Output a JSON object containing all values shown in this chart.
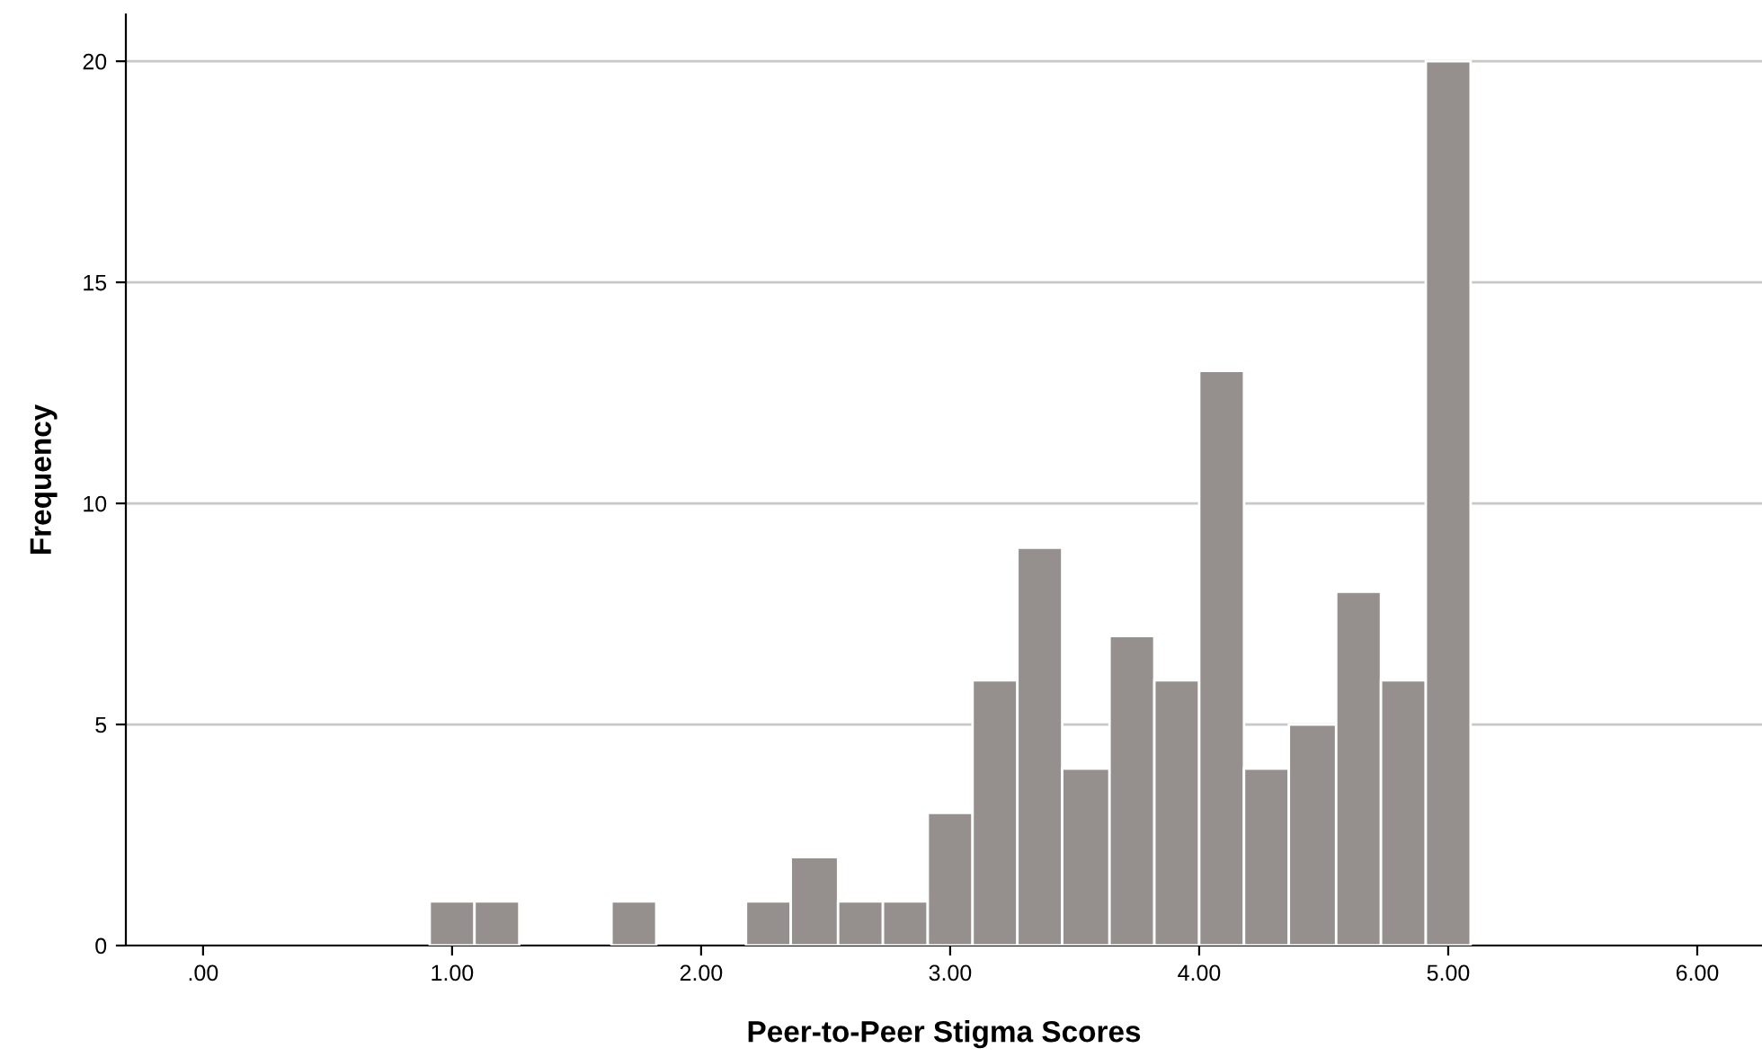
{
  "chart_data": {
    "type": "histogram",
    "xlabel": "Peer-to-Peer Stigma Scores",
    "ylabel": "Frequency",
    "bins": [
      0.91,
      1.09,
      1.27,
      1.64,
      1.82,
      2.18,
      2.36,
      2.55,
      2.73,
      2.91,
      3.09,
      3.27,
      3.45,
      3.64,
      3.82,
      4.0,
      4.18,
      4.36,
      4.55,
      4.73,
      4.91,
      5.09
    ],
    "values": [
      1,
      1,
      0,
      1,
      0,
      1,
      2,
      1,
      1,
      3,
      6,
      9,
      4,
      7,
      6,
      13,
      4,
      5,
      8,
      6,
      20
    ],
    "color": "#958f8d",
    "xlim": [
      -0.31,
      6.26
    ],
    "ylim": [
      0,
      21.06
    ],
    "xticks": [
      {
        "value": 0,
        "label": ".00"
      },
      {
        "value": 1,
        "label": "1.00"
      },
      {
        "value": 2,
        "label": "2.00"
      },
      {
        "value": 3,
        "label": "3.00"
      },
      {
        "value": 4,
        "label": "4.00"
      },
      {
        "value": 5,
        "label": "5.00"
      },
      {
        "value": 6,
        "label": "6.00"
      }
    ],
    "yticks": [
      0,
      5,
      10,
      15,
      20
    ],
    "grid": "y"
  }
}
